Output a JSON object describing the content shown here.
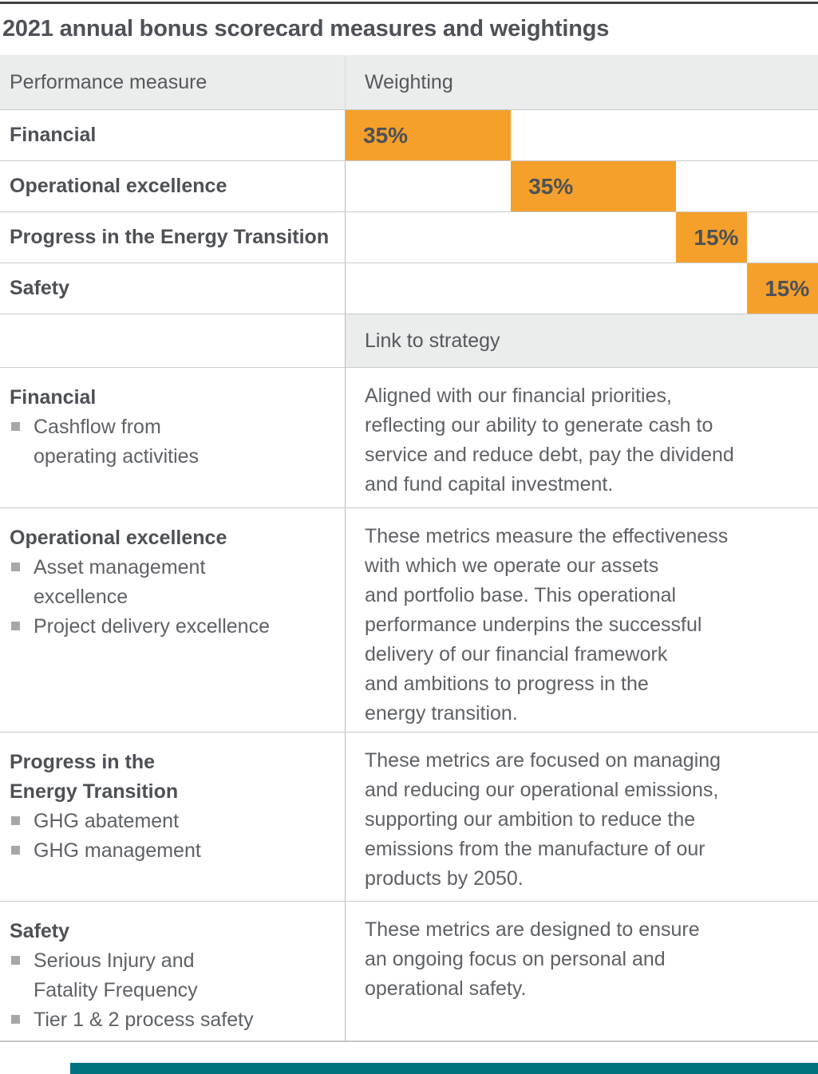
{
  "page": {
    "title": "2021 annual bonus scorecard measures and weightings"
  },
  "colors": {
    "bar_orange": "#F5A02B",
    "header_bg": "#EBECEC",
    "text_dark": "#4D5055",
    "text_body": "#5E6165",
    "footer_teal": "#00727E"
  },
  "weightings": {
    "col1_header": "Performance measure",
    "col2_header": "Weighting",
    "rows": [
      {
        "label": "Financial",
        "weight_label": "35%",
        "value": 35,
        "start": 0
      },
      {
        "label": "Operational excellence",
        "weight_label": "35%",
        "value": 35,
        "start": 35
      },
      {
        "label": "Progress in the Energy Transition",
        "weight_label": "15%",
        "value": 15,
        "start": 70
      },
      {
        "label": "Safety",
        "weight_label": "15%",
        "value": 15,
        "start": 85
      }
    ]
  },
  "strategy": {
    "header": "Link to strategy",
    "sections": [
      {
        "heading": "Financial",
        "bullets": [
          "Cashflow from\noperating activities"
        ],
        "description": "Aligned with our financial priorities,\nreflecting our ability to generate cash to\nservice and reduce debt, pay the dividend\nand fund capital investment."
      },
      {
        "heading": "Operational excellence",
        "bullets": [
          "Asset management\nexcellence",
          "Project delivery excellence"
        ],
        "description": "These metrics measure the effectiveness\nwith which we operate our assets\nand portfolio base. This operational\nperformance underpins the successful\ndelivery of our financial framework\nand ambitions to progress in the\nenergy transition."
      },
      {
        "heading": "Progress in the\nEnergy Transition",
        "bullets": [
          "GHG abatement",
          "GHG management"
        ],
        "description": "These metrics are focused on managing\nand reducing our operational emissions,\nsupporting our ambition to reduce the\nemissions from the manufacture of our\nproducts by 2050."
      },
      {
        "heading": "Safety",
        "bullets": [
          "Serious Injury and\nFatality Frequency",
          "Tier 1 & 2 process safety"
        ],
        "description": "These metrics are designed to ensure\nan ongoing focus on personal and\noperational safety."
      }
    ]
  },
  "chart_data": {
    "type": "bar",
    "subtype": "waterfall-cascade",
    "orientation": "horizontal",
    "title": "2021 annual bonus scorecard measures and weightings",
    "xlabel": "Weighting",
    "unit": "%",
    "xlim": [
      0,
      100
    ],
    "categories": [
      "Financial",
      "Operational excellence",
      "Progress in the Energy Transition",
      "Safety"
    ],
    "values": [
      35,
      35,
      15,
      15
    ],
    "bar_starts": [
      0,
      35,
      70,
      85
    ],
    "data_labels": [
      "35%",
      "35%",
      "15%",
      "15%"
    ],
    "bar_color": "#F5A02B",
    "grid": false,
    "legend": false
  }
}
